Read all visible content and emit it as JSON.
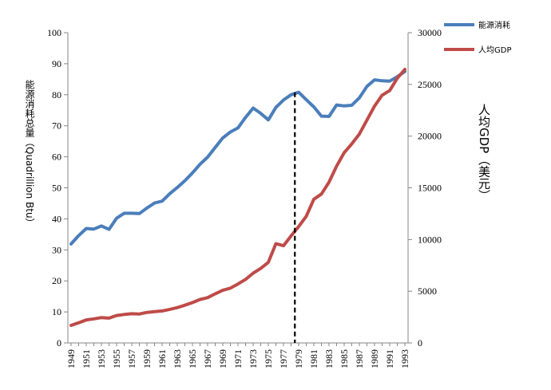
{
  "chart_data": {
    "type": "line",
    "x": [
      1949,
      1950,
      1951,
      1952,
      1953,
      1954,
      1955,
      1956,
      1957,
      1958,
      1959,
      1960,
      1961,
      1962,
      1963,
      1964,
      1965,
      1966,
      1967,
      1968,
      1969,
      1970,
      1971,
      1972,
      1973,
      1974,
      1975,
      1976,
      1977,
      1978,
      1979,
      1980,
      1981,
      1982,
      1983,
      1984,
      1985,
      1986,
      1987,
      1988,
      1989,
      1990,
      1991,
      1992,
      1993
    ],
    "x_tick_labels": [
      "1949",
      "1951",
      "1953",
      "1955",
      "1957",
      "1959",
      "1961",
      "1963",
      "1965",
      "1967",
      "1969",
      "1971",
      "1973",
      "1975",
      "1977",
      "1979",
      "1981",
      "1983",
      "1985",
      "1987",
      "1989",
      "1991",
      "1993"
    ],
    "series": [
      {
        "name": "能源消耗",
        "axis": "left",
        "color": "#4a7ebb",
        "values": [
          31.9,
          34.6,
          36.9,
          36.7,
          37.7,
          36.6,
          40.2,
          41.8,
          41.8,
          41.7,
          43.5,
          45.1,
          45.7,
          48.1,
          50.1,
          52.3,
          54.8,
          57.6,
          59.9,
          63.0,
          66.1,
          68.0,
          69.3,
          72.7,
          75.7,
          74.0,
          71.9,
          75.9,
          78.3,
          80.0,
          80.8,
          78.4,
          76.1,
          73.1,
          73.0,
          76.7,
          76.4,
          76.6,
          79.0,
          82.7,
          84.8,
          84.5,
          84.4,
          85.8,
          87.5
        ]
      },
      {
        "name": "人均GDP",
        "axis": "right",
        "color": "#be4b48",
        "values": [
          1700,
          1950,
          2230,
          2330,
          2450,
          2400,
          2650,
          2750,
          2820,
          2800,
          2950,
          3020,
          3090,
          3250,
          3420,
          3650,
          3900,
          4200,
          4380,
          4750,
          5100,
          5300,
          5700,
          6150,
          6750,
          7200,
          7800,
          9600,
          9400,
          10350,
          11250,
          12250,
          13900,
          14400,
          15550,
          17100,
          18400,
          19250,
          20200,
          21550,
          22900,
          23950,
          24400,
          25600,
          26450
        ]
      }
    ],
    "y_left": {
      "ylim": [
        0,
        100
      ],
      "ticks": [
        "0",
        "10",
        "20",
        "30",
        "40",
        "50",
        "60",
        "70",
        "80",
        "90",
        "100"
      ]
    },
    "y_right": {
      "ylim": [
        0,
        30000
      ],
      "ticks": [
        "0",
        "5000",
        "10000",
        "15000",
        "20000",
        "25000",
        "30000"
      ]
    },
    "ylabel_left": "能源消耗总量（Quadrillion Btu）",
    "ylabel_right": "人均GDP（美元）",
    "annotation": {
      "type": "vertical-dashed-line",
      "x": 1978.5,
      "y": 80.8
    },
    "legend": {
      "position": "top-right",
      "entries": [
        "能源消耗",
        "人均GDP"
      ]
    }
  }
}
